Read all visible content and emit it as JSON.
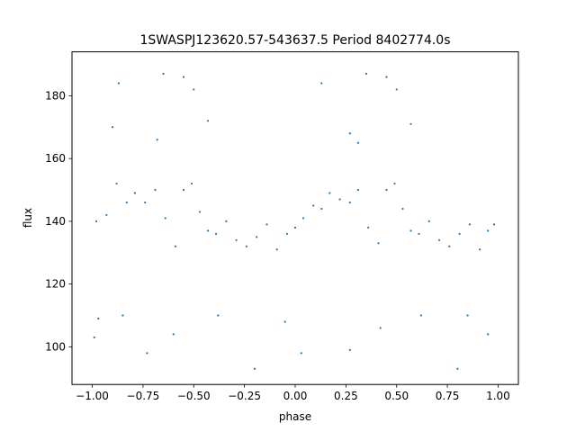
{
  "chart_data": {
    "type": "scatter",
    "title": "1SWASPJ123620.57-543637.5 Period 8402774.0s",
    "xlabel": "phase",
    "ylabel": "flux",
    "xlim": [
      -1.1,
      1.1
    ],
    "ylim": [
      88,
      194
    ],
    "xticks": [
      -1.0,
      -0.75,
      -0.5,
      -0.25,
      0.0,
      0.25,
      0.5,
      0.75,
      1.0
    ],
    "xtick_labels": [
      "−1.00",
      "−0.75",
      "−0.50",
      "−0.25",
      "0.00",
      "0.25",
      "0.50",
      "0.75",
      "1.00"
    ],
    "yticks": [
      100,
      120,
      140,
      160,
      180
    ],
    "ytick_labels": [
      "100",
      "120",
      "140",
      "160",
      "180"
    ],
    "grid": false,
    "legend": "none",
    "point_color": "#1f77b4",
    "series": [
      {
        "values": [
          {
            "x": -0.98,
            "y": 140
          },
          {
            "x": -0.93,
            "y": 142
          },
          {
            "x": -0.88,
            "y": 152
          },
          {
            "x": -0.83,
            "y": 146
          },
          {
            "x": -0.79,
            "y": 149
          },
          {
            "x": -0.74,
            "y": 146
          },
          {
            "x": -0.69,
            "y": 150
          },
          {
            "x": -0.64,
            "y": 141
          },
          {
            "x": -0.59,
            "y": 132
          },
          {
            "x": -0.55,
            "y": 150
          },
          {
            "x": -0.51,
            "y": 152
          },
          {
            "x": -0.47,
            "y": 143
          },
          {
            "x": -0.43,
            "y": 137
          },
          {
            "x": -0.39,
            "y": 136
          },
          {
            "x": -0.34,
            "y": 140
          },
          {
            "x": -0.29,
            "y": 134
          },
          {
            "x": -0.24,
            "y": 132
          },
          {
            "x": -0.19,
            "y": 135
          },
          {
            "x": -0.14,
            "y": 139
          },
          {
            "x": -0.09,
            "y": 131
          },
          {
            "x": -0.04,
            "y": 136
          },
          {
            "x": 0.0,
            "y": 138
          },
          {
            "x": 0.04,
            "y": 141
          },
          {
            "x": 0.09,
            "y": 145
          },
          {
            "x": 0.13,
            "y": 144
          },
          {
            "x": 0.17,
            "y": 149
          },
          {
            "x": 0.22,
            "y": 147
          },
          {
            "x": 0.27,
            "y": 146
          },
          {
            "x": 0.31,
            "y": 150
          },
          {
            "x": 0.36,
            "y": 138
          },
          {
            "x": 0.41,
            "y": 133
          },
          {
            "x": 0.45,
            "y": 150
          },
          {
            "x": 0.49,
            "y": 152
          },
          {
            "x": 0.53,
            "y": 144
          },
          {
            "x": 0.57,
            "y": 137
          },
          {
            "x": 0.61,
            "y": 136
          },
          {
            "x": 0.66,
            "y": 140
          },
          {
            "x": 0.71,
            "y": 134
          },
          {
            "x": 0.76,
            "y": 132
          },
          {
            "x": 0.81,
            "y": 136
          },
          {
            "x": 0.86,
            "y": 139
          },
          {
            "x": 0.91,
            "y": 131
          },
          {
            "x": 0.95,
            "y": 137
          },
          {
            "x": 0.98,
            "y": 139
          },
          {
            "x": -0.9,
            "y": 170
          },
          {
            "x": -0.68,
            "y": 166
          },
          {
            "x": -0.55,
            "y": 186
          },
          {
            "x": -0.5,
            "y": 182
          },
          {
            "x": -0.43,
            "y": 172
          },
          {
            "x": 0.27,
            "y": 168
          },
          {
            "x": 0.31,
            "y": 165
          },
          {
            "x": 0.45,
            "y": 186
          },
          {
            "x": 0.5,
            "y": 182
          },
          {
            "x": 0.57,
            "y": 171
          },
          {
            "x": -0.87,
            "y": 184
          },
          {
            "x": -0.65,
            "y": 187
          },
          {
            "x": 0.13,
            "y": 184
          },
          {
            "x": 0.35,
            "y": 187
          },
          {
            "x": -0.97,
            "y": 109
          },
          {
            "x": -0.85,
            "y": 110
          },
          {
            "x": -0.73,
            "y": 98
          },
          {
            "x": -0.6,
            "y": 104
          },
          {
            "x": -0.38,
            "y": 110
          },
          {
            "x": -0.2,
            "y": 93
          },
          {
            "x": -0.05,
            "y": 108
          },
          {
            "x": 0.03,
            "y": 98
          },
          {
            "x": 0.27,
            "y": 99
          },
          {
            "x": 0.42,
            "y": 106
          },
          {
            "x": 0.62,
            "y": 110
          },
          {
            "x": 0.8,
            "y": 93
          },
          {
            "x": 0.95,
            "y": 104
          },
          {
            "x": -0.99,
            "y": 103
          },
          {
            "x": 0.85,
            "y": 110
          }
        ]
      }
    ]
  }
}
